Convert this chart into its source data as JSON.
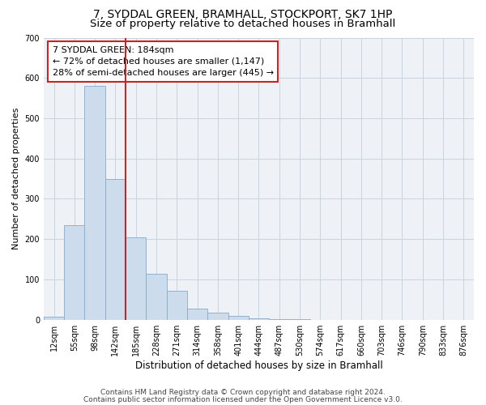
{
  "title1": "7, SYDDAL GREEN, BRAMHALL, STOCKPORT, SK7 1HP",
  "title2": "Size of property relative to detached houses in Bramhall",
  "xlabel": "Distribution of detached houses by size in Bramhall",
  "ylabel": "Number of detached properties",
  "footer_line1": "Contains HM Land Registry data © Crown copyright and database right 2024.",
  "footer_line2": "Contains public sector information licensed under the Open Government Licence v3.0.",
  "bar_labels": [
    "12sqm",
    "55sqm",
    "98sqm",
    "142sqm",
    "185sqm",
    "228sqm",
    "271sqm",
    "314sqm",
    "358sqm",
    "401sqm",
    "444sqm",
    "487sqm",
    "530sqm",
    "574sqm",
    "617sqm",
    "660sqm",
    "703sqm",
    "746sqm",
    "790sqm",
    "833sqm",
    "876sqm"
  ],
  "bar_values": [
    7,
    235,
    580,
    350,
    205,
    115,
    72,
    28,
    18,
    10,
    4,
    2,
    1,
    0,
    0,
    0,
    0,
    0,
    0,
    0,
    0
  ],
  "bar_color": "#ccdcec",
  "bar_edge_color": "#88aac8",
  "vline_x": 3.5,
  "vline_color": "#cc2222",
  "annotation_line1": "7 SYDDAL GREEN: 184sqm",
  "annotation_line2": "← 72% of detached houses are smaller (1,147)",
  "annotation_line3": "28% of semi-detached houses are larger (445) →",
  "annotation_box_color": "#cc2222",
  "ylim": [
    0,
    700
  ],
  "yticks": [
    0,
    100,
    200,
    300,
    400,
    500,
    600,
    700
  ],
  "grid_color": "#c8d4de",
  "bg_color": "#eef2f6",
  "title1_fontsize": 10,
  "title2_fontsize": 9.5,
  "xlabel_fontsize": 8.5,
  "ylabel_fontsize": 8,
  "tick_fontsize": 7,
  "annotation_fontsize": 8,
  "footer_fontsize": 6.5
}
